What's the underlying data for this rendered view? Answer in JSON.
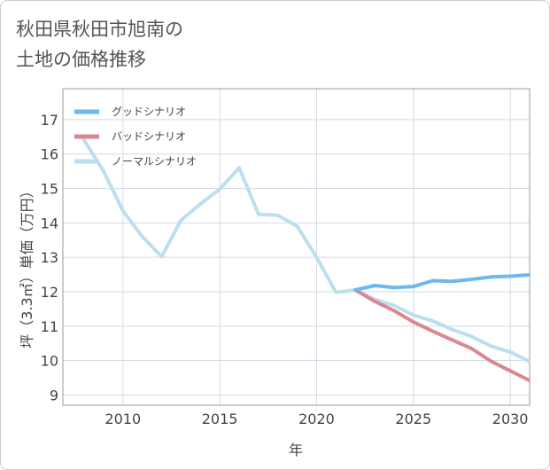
{
  "title": {
    "line1": "秋田県秋田市旭南の",
    "line2": "土地の価格推移"
  },
  "chart_data": {
    "type": "line",
    "title": "秋田県秋田市旭南の土地の価格推移",
    "xlabel": "年",
    "ylabel": "坪（3.3㎡）単価（万円）",
    "xlim": [
      2006.9,
      2031
    ],
    "ylim": [
      8.7,
      17.9
    ],
    "xticks": [
      2010,
      2015,
      2020,
      2025,
      2030
    ],
    "yticks": [
      9,
      10,
      11,
      12,
      13,
      14,
      15,
      16,
      17
    ],
    "legend_position": "top-left",
    "series": [
      {
        "name": "グッドシナリオ",
        "color": "#6db8ee",
        "x": [
          2022,
          2023,
          2024,
          2025,
          2026,
          2027,
          2028,
          2029,
          2030,
          2031
        ],
        "y": [
          12.05,
          12.18,
          12.12,
          12.15,
          12.32,
          12.3,
          12.36,
          12.43,
          12.45,
          12.49
        ]
      },
      {
        "name": "バッドシナリオ",
        "color": "#d98890",
        "x": [
          2022,
          2023,
          2024,
          2025,
          2026,
          2027,
          2028,
          2029,
          2030,
          2031
        ],
        "y": [
          12.05,
          11.72,
          11.45,
          11.12,
          10.85,
          10.6,
          10.35,
          9.98,
          9.7,
          9.42
        ]
      },
      {
        "name": "ノーマルシナリオ",
        "color": "#bcdfee",
        "x": [
          2008,
          2009,
          2010,
          2011,
          2012,
          2013,
          2014,
          2015,
          2016,
          2017,
          2018,
          2019,
          2020,
          2021,
          2022,
          2023,
          2024,
          2025,
          2026,
          2027,
          2028,
          2029,
          2030,
          2031
        ],
        "y": [
          16.4,
          15.5,
          14.35,
          13.6,
          13.02,
          14.08,
          14.55,
          14.98,
          15.6,
          14.25,
          14.22,
          13.9,
          13.0,
          11.98,
          12.05,
          11.78,
          11.6,
          11.32,
          11.15,
          10.9,
          10.7,
          10.42,
          10.25,
          9.97
        ]
      }
    ]
  }
}
